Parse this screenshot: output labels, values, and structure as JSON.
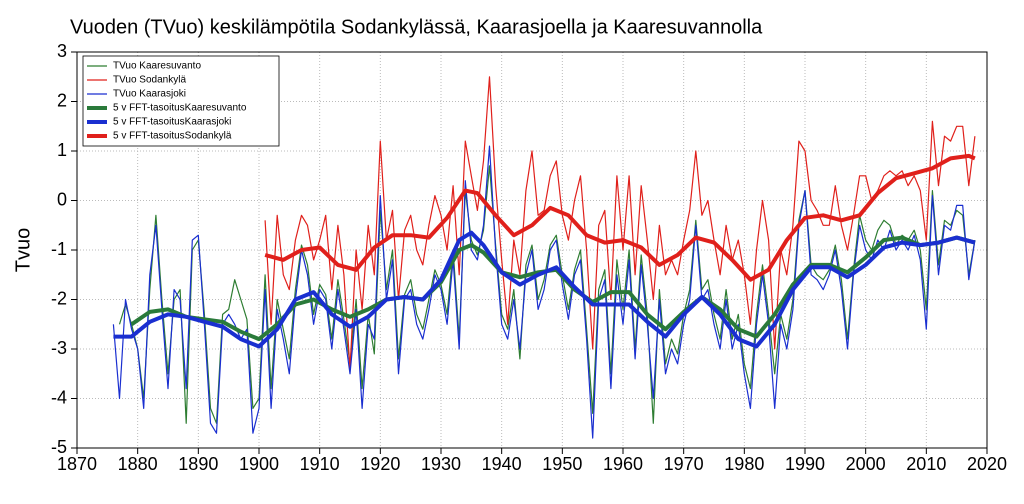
{
  "chart_data": {
    "type": "line",
    "title": "Vuoden (TVuo) keskilämpötila Sodankylässä, Kaarasjoella ja Kaaresuvannolla",
    "ylabel": "Tvuo",
    "xlim": [
      1870,
      2020
    ],
    "xticks": [
      1870,
      1880,
      1890,
      1900,
      1910,
      1920,
      1930,
      1940,
      1950,
      1960,
      1970,
      1980,
      1990,
      2000,
      2010,
      2020
    ],
    "ylim": [
      -5,
      3
    ],
    "yticks": [
      -5,
      -4,
      -3,
      -2,
      -1,
      0,
      1,
      2,
      3
    ],
    "grid": true,
    "legend": "upper left",
    "series": [
      {
        "name": "TVuo Kaaresuvanto",
        "color": "#2e7d32",
        "linewidth": 1.2,
        "x": [
          1877,
          1878,
          1879,
          1880,
          1881,
          1882,
          1883,
          1884,
          1885,
          1886,
          1887,
          1888,
          1889,
          1890,
          1891,
          1892,
          1893,
          1894,
          1895,
          1896,
          1897,
          1898,
          1899,
          1900,
          1901,
          1902,
          1903,
          1904,
          1905,
          1906,
          1907,
          1908,
          1909,
          1910,
          1911,
          1912,
          1913,
          1914,
          1915,
          1916,
          1917,
          1918,
          1919,
          1920,
          1921,
          1922,
          1923,
          1924,
          1925,
          1926,
          1927,
          1928,
          1929,
          1930,
          1931,
          1932,
          1933,
          1934,
          1935,
          1936,
          1937,
          1938,
          1939,
          1940,
          1941,
          1942,
          1943,
          1944,
          1945,
          1946,
          1947,
          1948,
          1949,
          1950,
          1951,
          1952,
          1953,
          1954,
          1955,
          1956,
          1957,
          1958,
          1959,
          1960,
          1961,
          1962,
          1963,
          1964,
          1965,
          1966,
          1967,
          1968,
          1969,
          1970,
          1971,
          1972,
          1973,
          1974,
          1975,
          1976,
          1977,
          1978,
          1979,
          1980,
          1981,
          1982,
          1983,
          1984,
          1985,
          1986,
          1987,
          1988,
          1989,
          1990,
          1991,
          1992,
          1993,
          1994,
          1995,
          1996,
          1997,
          1998,
          1999,
          2000,
          2001,
          2002,
          2003,
          2004,
          2005,
          2006,
          2007,
          2008,
          2009,
          2010,
          2011,
          2012,
          2013,
          2014,
          2015,
          2016,
          2017,
          2018
        ],
        "values": [
          -2.5,
          -2.1,
          -2.5,
          -3.0,
          -4.0,
          -1.8,
          -0.3,
          -2.0,
          -3.5,
          -2.0,
          -1.8,
          -4.5,
          -1.0,
          -0.8,
          -2.3,
          -4.2,
          -4.5,
          -2.3,
          -2.2,
          -1.6,
          -2.0,
          -2.4,
          -4.2,
          -4.0,
          -1.5,
          -3.8,
          -2.0,
          -2.6,
          -3.2,
          -1.8,
          -0.9,
          -1.3,
          -2.3,
          -1.7,
          -1.9,
          -2.8,
          -1.6,
          -2.4,
          -3.3,
          -2.0,
          -3.8,
          -2.3,
          -3.1,
          -0.2,
          -1.8,
          -1.0,
          -3.2,
          -1.9,
          -1.6,
          -2.3,
          -2.6,
          -2.0,
          -1.4,
          -1.7,
          -2.3,
          -1.0,
          -2.8,
          0.2,
          -0.8,
          -1.1,
          -0.6,
          0.7,
          -0.9,
          -2.3,
          -2.6,
          -1.8,
          -3.2,
          -1.3,
          -0.9,
          -2.0,
          -1.6,
          -0.9,
          -0.7,
          -1.5,
          -2.2,
          -1.4,
          -1.0,
          -2.6,
          -4.3,
          -1.8,
          -1.4,
          -3.5,
          -1.2,
          -2.2,
          -1.0,
          -3.0,
          -1.1,
          -2.3,
          -4.5,
          -1.8,
          -3.3,
          -2.8,
          -3.1,
          -2.3,
          -1.8,
          -0.4,
          -1.8,
          -1.6,
          -2.3,
          -2.8,
          -1.8,
          -2.8,
          -2.3,
          -3.3,
          -3.8,
          -2.3,
          -1.3,
          -2.3,
          -3.5,
          -2.3,
          -2.8,
          -2.0,
          -0.4,
          0.2,
          -1.3,
          -1.5,
          -1.6,
          -1.4,
          -0.9,
          -1.6,
          -2.8,
          -1.4,
          -0.3,
          -0.8,
          -1.0,
          -0.6,
          -0.4,
          -0.5,
          -0.9,
          -0.7,
          -0.8,
          -0.6,
          -1.0,
          -2.2,
          0.2,
          -1.3,
          -0.4,
          -0.5,
          -0.2,
          -0.3,
          -1.5,
          -0.8
        ]
      },
      {
        "name": "TVuo Sodankylä",
        "color": "#e0201b",
        "linewidth": 1.2,
        "x": [
          1901,
          1902,
          1903,
          1904,
          1905,
          1906,
          1907,
          1908,
          1909,
          1910,
          1911,
          1912,
          1913,
          1914,
          1915,
          1916,
          1917,
          1918,
          1919,
          1920,
          1921,
          1922,
          1923,
          1924,
          1925,
          1926,
          1927,
          1928,
          1929,
          1930,
          1931,
          1932,
          1933,
          1934,
          1935,
          1936,
          1937,
          1938,
          1939,
          1940,
          1941,
          1942,
          1943,
          1944,
          1945,
          1946,
          1947,
          1948,
          1949,
          1950,
          1951,
          1952,
          1953,
          1954,
          1955,
          1956,
          1957,
          1958,
          1959,
          1960,
          1961,
          1962,
          1963,
          1964,
          1965,
          1966,
          1967,
          1968,
          1969,
          1970,
          1971,
          1972,
          1973,
          1974,
          1975,
          1976,
          1977,
          1978,
          1979,
          1980,
          1981,
          1982,
          1983,
          1984,
          1985,
          1986,
          1987,
          1988,
          1989,
          1990,
          1991,
          1992,
          1993,
          1994,
          1995,
          1996,
          1997,
          1998,
          1999,
          2000,
          2001,
          2002,
          2003,
          2004,
          2005,
          2006,
          2007,
          2008,
          2009,
          2010,
          2011,
          2012,
          2013,
          2014,
          2015,
          2016,
          2017,
          2018
        ],
        "values": [
          -0.4,
          -2.5,
          -0.3,
          -1.5,
          -1.8,
          -0.8,
          -0.3,
          -0.5,
          -1.2,
          -0.8,
          -0.3,
          -1.8,
          -0.5,
          -1.5,
          -3.4,
          -1.0,
          -2.2,
          -0.5,
          -1.5,
          1.2,
          -0.8,
          -0.2,
          -2.0,
          -0.6,
          -0.3,
          -1.0,
          -1.3,
          -0.5,
          0.1,
          -0.3,
          -1.0,
          0.3,
          -1.5,
          1.2,
          0.5,
          -0.2,
          0.8,
          2.5,
          0.3,
          -1.2,
          -2.5,
          -0.8,
          -1.5,
          0.2,
          1.0,
          -0.3,
          -0.2,
          0.5,
          0.8,
          -0.3,
          -0.8,
          0.0,
          0.5,
          -1.0,
          -3.0,
          -0.5,
          -0.2,
          -2.0,
          0.5,
          -1.0,
          0.5,
          -1.5,
          0.3,
          -0.8,
          -2.0,
          -0.5,
          -1.5,
          -1.2,
          -1.5,
          -0.8,
          -0.2,
          1.0,
          -0.3,
          0.0,
          -0.8,
          -1.5,
          -0.5,
          -1.2,
          -0.8,
          -1.5,
          -2.5,
          -1.0,
          0.0,
          -0.8,
          -3.0,
          -1.0,
          -1.5,
          -0.5,
          1.2,
          1.0,
          0.0,
          -0.2,
          -0.5,
          -0.5,
          0.3,
          -0.5,
          -1.0,
          -0.3,
          0.5,
          0.5,
          0.0,
          0.2,
          0.5,
          0.6,
          0.5,
          0.6,
          0.3,
          0.5,
          0.2,
          -0.8,
          1.6,
          0.3,
          1.3,
          1.2,
          1.5,
          1.5,
          0.3,
          1.3
        ]
      },
      {
        "name": "TVuo Kaarasjoki",
        "color": "#1a2fd0",
        "linewidth": 1.2,
        "x": [
          1876,
          1877,
          1878,
          1879,
          1880,
          1881,
          1882,
          1883,
          1884,
          1885,
          1886,
          1887,
          1888,
          1889,
          1890,
          1891,
          1892,
          1893,
          1894,
          1895,
          1896,
          1897,
          1898,
          1899,
          1900,
          1901,
          1902,
          1903,
          1904,
          1905,
          1906,
          1907,
          1908,
          1909,
          1910,
          1911,
          1912,
          1913,
          1914,
          1915,
          1916,
          1917,
          1918,
          1919,
          1920,
          1921,
          1922,
          1923,
          1924,
          1925,
          1926,
          1927,
          1928,
          1929,
          1930,
          1931,
          1932,
          1933,
          1934,
          1935,
          1936,
          1937,
          1938,
          1939,
          1940,
          1941,
          1942,
          1943,
          1944,
          1945,
          1946,
          1947,
          1948,
          1949,
          1950,
          1951,
          1952,
          1953,
          1954,
          1955,
          1956,
          1957,
          1958,
          1959,
          1960,
          1961,
          1962,
          1963,
          1964,
          1965,
          1966,
          1967,
          1968,
          1969,
          1970,
          1971,
          1972,
          1973,
          1974,
          1975,
          1976,
          1977,
          1978,
          1979,
          1980,
          1981,
          1982,
          1983,
          1984,
          1985,
          1986,
          1987,
          1988,
          1989,
          1990,
          1991,
          1992,
          1993,
          1994,
          1995,
          1996,
          1997,
          1998,
          1999,
          2000,
          2001,
          2002,
          2003,
          2004,
          2005,
          2006,
          2007,
          2008,
          2009,
          2010,
          2011,
          2012,
          2013,
          2014,
          2015,
          2016,
          2017,
          2018
        ],
        "values": [
          -2.5,
          -4.0,
          -2.0,
          -2.6,
          -3.0,
          -4.2,
          -1.5,
          -0.5,
          -2.2,
          -3.8,
          -1.8,
          -2.0,
          -3.8,
          -0.8,
          -0.7,
          -2.5,
          -4.5,
          -4.7,
          -2.5,
          -2.3,
          -2.5,
          -2.8,
          -2.6,
          -4.7,
          -4.2,
          -1.8,
          -4.2,
          -2.2,
          -2.8,
          -3.5,
          -2.0,
          -1.0,
          -1.5,
          -2.5,
          -1.8,
          -2.0,
          -3.0,
          -1.8,
          -2.6,
          -3.5,
          -2.2,
          -4.2,
          -2.5,
          -2.8,
          0.1,
          -2.0,
          -1.2,
          -3.5,
          -2.0,
          -1.8,
          -2.5,
          -2.8,
          -2.2,
          -1.5,
          -1.8,
          -2.5,
          -1.2,
          -3.0,
          0.4,
          -1.0,
          -1.2,
          -0.5,
          1.1,
          -1.0,
          -2.5,
          -2.8,
          -2.0,
          -3.0,
          -1.5,
          -1.0,
          -2.2,
          -1.8,
          -1.0,
          -0.8,
          -1.7,
          -2.4,
          -1.5,
          -1.2,
          -2.8,
          -4.8,
          -2.0,
          -1.6,
          -3.8,
          -1.5,
          -2.5,
          -1.2,
          -3.2,
          -1.3,
          -2.5,
          -4.0,
          -2.0,
          -3.5,
          -3.0,
          -3.3,
          -2.5,
          -2.0,
          -0.5,
          -2.0,
          -1.8,
          -2.5,
          -3.0,
          -2.0,
          -3.0,
          -2.5,
          -3.5,
          -4.2,
          -2.5,
          -1.5,
          -2.5,
          -4.2,
          -2.5,
          -3.0,
          -2.2,
          -0.5,
          0.2,
          -1.5,
          -1.6,
          -1.8,
          -1.5,
          -1.0,
          -1.8,
          -3.0,
          -1.5,
          -0.5,
          -1.0,
          -1.2,
          -0.8,
          -1.0,
          -0.6,
          -1.0,
          -0.8,
          -1.0,
          -0.7,
          -1.2,
          -2.6,
          0.1,
          -1.5,
          -0.5,
          -0.6,
          -0.1,
          -0.1,
          -1.6,
          -0.8
        ]
      },
      {
        "name": "5 v FFT-tasoitusKaaresuvanto",
        "color": "#2a7a3a",
        "linewidth": 4,
        "x": [
          1879,
          1882,
          1885,
          1888,
          1891,
          1894,
          1897,
          1900,
          1903,
          1906,
          1909,
          1912,
          1915,
          1918,
          1921,
          1924,
          1927,
          1930,
          1933,
          1935,
          1937,
          1940,
          1943,
          1946,
          1949,
          1952,
          1955,
          1958,
          1961,
          1964,
          1967,
          1970,
          1973,
          1976,
          1979,
          1982,
          1985,
          1988,
          1991,
          1994,
          1997,
          2000,
          2003,
          2006,
          2009,
          2012,
          2015,
          2018
        ],
        "values": [
          -2.5,
          -2.25,
          -2.2,
          -2.35,
          -2.4,
          -2.45,
          -2.65,
          -2.8,
          -2.5,
          -2.1,
          -2.0,
          -2.2,
          -2.35,
          -2.2,
          -2.0,
          -1.95,
          -2.0,
          -1.65,
          -1.0,
          -0.9,
          -1.05,
          -1.45,
          -1.55,
          -1.45,
          -1.4,
          -1.8,
          -2.05,
          -1.85,
          -1.85,
          -2.3,
          -2.6,
          -2.25,
          -1.95,
          -2.2,
          -2.6,
          -2.75,
          -2.3,
          -1.7,
          -1.3,
          -1.3,
          -1.45,
          -1.15,
          -0.8,
          -0.75,
          -0.9,
          -0.85,
          -0.75,
          -0.85
        ]
      },
      {
        "name": "5 v FFT-tasoitusKaarasjoki",
        "color": "#1a2fd0",
        "linewidth": 4,
        "x": [
          1876,
          1879,
          1882,
          1885,
          1888,
          1891,
          1894,
          1897,
          1900,
          1903,
          1906,
          1909,
          1912,
          1915,
          1918,
          1921,
          1924,
          1927,
          1930,
          1933,
          1935,
          1937,
          1940,
          1943,
          1946,
          1949,
          1952,
          1955,
          1958,
          1961,
          1964,
          1967,
          1970,
          1973,
          1976,
          1979,
          1982,
          1985,
          1988,
          1991,
          1994,
          1997,
          2000,
          2003,
          2006,
          2009,
          2012,
          2015,
          2018
        ],
        "values": [
          -2.75,
          -2.75,
          -2.45,
          -2.3,
          -2.35,
          -2.45,
          -2.55,
          -2.8,
          -2.95,
          -2.6,
          -2.0,
          -1.85,
          -2.3,
          -2.55,
          -2.35,
          -2.0,
          -1.95,
          -2.0,
          -1.6,
          -0.8,
          -0.65,
          -0.9,
          -1.45,
          -1.7,
          -1.5,
          -1.35,
          -1.75,
          -2.1,
          -2.1,
          -2.1,
          -2.45,
          -2.75,
          -2.3,
          -1.95,
          -2.3,
          -2.8,
          -2.95,
          -2.5,
          -1.8,
          -1.35,
          -1.35,
          -1.55,
          -1.3,
          -0.95,
          -0.85,
          -0.9,
          -0.85,
          -0.75,
          -0.85
        ]
      },
      {
        "name": "5 v FFT-tasoitusSodankylä",
        "color": "#e0201b",
        "linewidth": 4,
        "x": [
          1901,
          1904,
          1907,
          1910,
          1913,
          1916,
          1919,
          1922,
          1925,
          1928,
          1931,
          1934,
          1936,
          1939,
          1942,
          1945,
          1948,
          1951,
          1954,
          1957,
          1960,
          1963,
          1966,
          1969,
          1972,
          1975,
          1978,
          1981,
          1984,
          1987,
          1990,
          1993,
          1996,
          1999,
          2002,
          2005,
          2008,
          2011,
          2014,
          2017,
          2018
        ],
        "values": [
          -1.1,
          -1.2,
          -1.0,
          -0.95,
          -1.3,
          -1.4,
          -0.95,
          -0.7,
          -0.7,
          -0.75,
          -0.35,
          0.2,
          0.15,
          -0.3,
          -0.7,
          -0.5,
          -0.15,
          -0.3,
          -0.7,
          -0.85,
          -0.8,
          -0.95,
          -1.3,
          -1.1,
          -0.75,
          -0.85,
          -1.2,
          -1.6,
          -1.4,
          -0.8,
          -0.35,
          -0.3,
          -0.4,
          -0.3,
          0.15,
          0.45,
          0.55,
          0.65,
          0.85,
          0.9,
          0.85
        ]
      }
    ]
  }
}
